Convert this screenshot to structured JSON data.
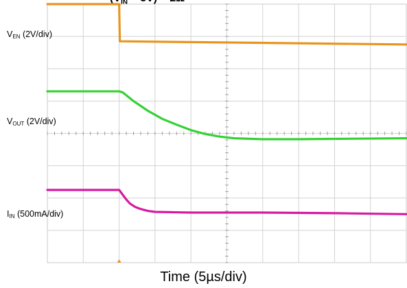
{
  "chart_data": {
    "type": "line",
    "xlabel": "Time (5µs/div)",
    "x_divisions": 10,
    "y_divisions": 8,
    "trigger_division": 2,
    "series": [
      {
        "name_main": "V",
        "name_sub": "EN",
        "name_suffix": " (2V/div)",
        "color": "#e8951f",
        "x": [
          0,
          2,
          2.02,
          10
        ],
        "y": [
          8.0,
          8.0,
          6.85,
          6.75
        ]
      },
      {
        "name_main": "V",
        "name_sub": "OUT",
        "name_suffix": " (2V/div)",
        "color": "#35d135",
        "x": [
          0,
          2,
          2.1,
          2.4,
          2.8,
          3.2,
          3.6,
          4.0,
          4.4,
          4.8,
          5.2,
          6.0,
          7.0,
          8.0,
          10
        ],
        "y": [
          5.3,
          5.3,
          5.27,
          5.0,
          4.7,
          4.45,
          4.27,
          4.1,
          3.98,
          3.9,
          3.85,
          3.82,
          3.82,
          3.83,
          3.85
        ]
      },
      {
        "name_main": "I",
        "name_sub": "IN",
        "name_suffix": " (500mA/div)",
        "color": "#d619a0",
        "x": [
          0,
          2,
          2.1,
          2.2,
          2.3,
          2.45,
          2.6,
          2.8,
          3.0,
          3.5,
          4.0,
          6.0,
          8.0,
          10
        ],
        "y": [
          2.25,
          2.25,
          2.1,
          1.95,
          1.83,
          1.72,
          1.66,
          1.6,
          1.57,
          1.56,
          1.55,
          1.55,
          1.53,
          1.5
        ]
      }
    ]
  }
}
